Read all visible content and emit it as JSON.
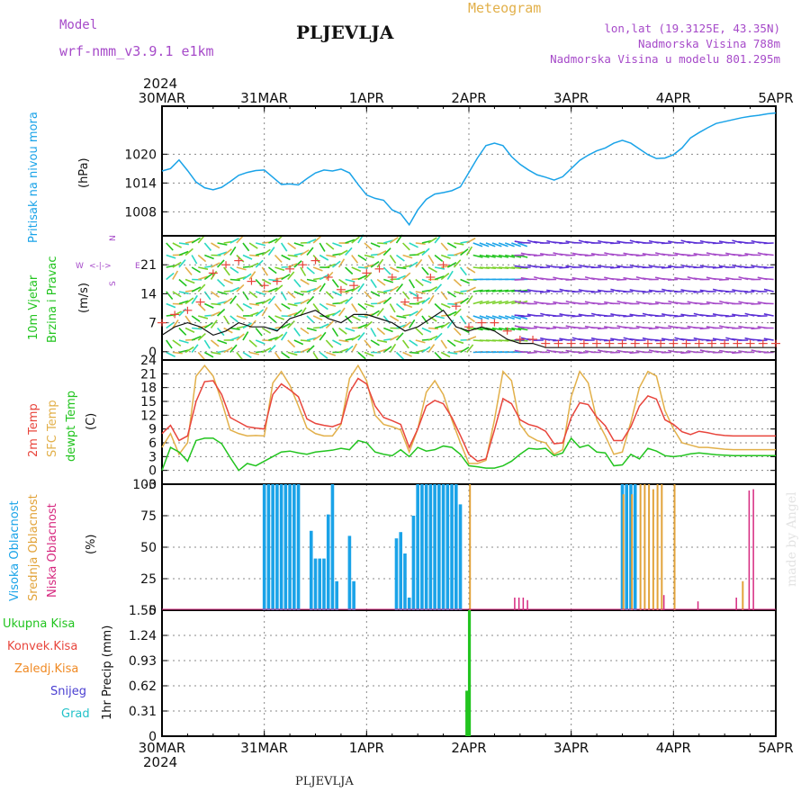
{
  "header": {
    "model_label": "Model",
    "model_name": "wrf-nmm_v3.9.1  e1km",
    "title": "PLJEVLJA",
    "meteogram": "Meteogram",
    "lonlat": "lon,lat (19.3125E, 43.35N)",
    "altitude": "Nadmorska Visina 788m",
    "model_altitude": "Nadmorska Visina u modelu 801.295m",
    "year_top": "2024",
    "year_bottom": "2024",
    "bottom_name": "PLJEVLJA",
    "credit": "made by Angel"
  },
  "time_axis": {
    "labels": [
      "30MAR",
      "31MAR",
      "1APR",
      "2APR",
      "3APR",
      "4APR",
      "5APR"
    ]
  },
  "panel_labels": {
    "pressure": [
      "Pritisak na nivou mora",
      "(hPa)"
    ],
    "wind": [
      "10m Vjetar",
      "Brzina i Pravac",
      "(m/s)"
    ],
    "compass": [
      "W",
      "S",
      "E",
      "N"
    ],
    "temp": [
      "2m Temp",
      "SFC Temp",
      "dewpt Temp",
      "(C)"
    ],
    "cloud": [
      "Visoka Oblacnost",
      "Srednja Oblacnost",
      "Niska Oblacnost",
      "(%)"
    ],
    "precip_axis": [
      "1hr Precip (mm)"
    ],
    "precip_legend": [
      "Ukupna Kisa",
      "Konvek.Kisa",
      "Zaledj.Kisa",
      "Snijeg",
      "Grad"
    ]
  },
  "colors": {
    "pressure": "#1aa3e8",
    "temp2m": "#e8453c",
    "sfc": "#e2b04a",
    "dewpt": "#22c41f",
    "high_cloud": "#1aa3e8",
    "mid_cloud": "#e2a33a",
    "low_cloud": "#d6287f",
    "total_rain": "#22c41f",
    "conv_rain": "#e8453c",
    "frz_rain": "#f08a24",
    "snow": "#4a3fd1",
    "hail": "#23c2c9",
    "pressure_label": "#1aa3e8",
    "wind_label": "#22c41f",
    "compass": "#a64ac9"
  },
  "chart_data": [
    {
      "type": "line",
      "name": "pressure",
      "ylabel": "(hPa)",
      "yticks": [
        1008,
        1014,
        1020
      ],
      "ylim": [
        1003,
        1030
      ],
      "x": [
        0,
        2,
        4,
        6,
        8,
        10,
        12,
        14,
        16,
        18,
        20,
        22,
        24,
        26,
        28,
        30,
        32,
        34,
        36,
        38,
        40,
        42,
        44,
        46,
        48,
        50,
        52,
        54,
        56,
        58,
        60,
        62,
        64,
        66,
        68,
        70,
        72,
        74,
        76,
        78,
        80,
        82,
        84,
        86,
        88,
        90,
        92,
        94,
        96,
        98,
        100,
        102,
        104,
        106,
        108,
        110,
        112,
        114,
        116,
        118,
        120,
        122,
        124,
        126,
        128,
        130,
        132,
        134,
        136,
        138,
        140,
        142,
        144
      ],
      "series": [
        {
          "values": [
            1016.5,
            1017,
            1018.8,
            1016.6,
            1014.2,
            1013,
            1012.6,
            1013.1,
            1014.3,
            1015.6,
            1016.2,
            1016.6,
            1016.7,
            1015.2,
            1013.7,
            1013.8,
            1013.6,
            1014.9,
            1016.1,
            1016.7,
            1016.5,
            1016.9,
            1016.1,
            1013.7,
            1011.5,
            1010.8,
            1010.4,
            1008.4,
            1007.6,
            1005.3,
            1008.4,
            1010.6,
            1011.7,
            1012,
            1012.4,
            1013.2,
            1016.2,
            1019.2,
            1021.8,
            1022.3,
            1021.8,
            1019.5,
            1017.9,
            1016.7,
            1015.7,
            1015.2,
            1014.6,
            1015.3,
            1017,
            1018.7,
            1019.8,
            1020.7,
            1021.3,
            1022.3,
            1022.9,
            1022.3,
            1021.1,
            1019.9,
            1019.1,
            1019.2,
            1019.9,
            1021.3,
            1023.4,
            1024.5,
            1025.5,
            1026.4,
            1026.8,
            1027.2,
            1027.6,
            1027.9,
            1028.1,
            1028.4,
            1028.6
          ]
        }
      ]
    },
    {
      "type": "line",
      "name": "wind speed",
      "ylabel": "(m/s)",
      "yticks": [
        0,
        7,
        14,
        21
      ],
      "ylim": [
        -2,
        28
      ],
      "x": [
        0,
        3,
        6,
        9,
        12,
        15,
        18,
        21,
        24,
        27,
        30,
        33,
        36,
        39,
        42,
        45,
        48,
        51,
        54,
        57,
        60,
        63,
        66,
        69,
        72,
        75,
        78,
        81,
        84,
        87,
        90,
        93,
        96,
        99,
        102,
        105,
        108,
        111,
        114,
        117,
        120,
        123,
        126,
        129,
        132,
        135,
        138,
        141,
        144
      ],
      "series": [
        {
          "name": "speed",
          "values": [
            4,
            6,
            7,
            6,
            4,
            5,
            7,
            6,
            6,
            5,
            8,
            9,
            10,
            8,
            7,
            9,
            9,
            8,
            7,
            5,
            6,
            8,
            10,
            6,
            5,
            6,
            5,
            3,
            2,
            2,
            1,
            1,
            1,
            1,
            1,
            1,
            1,
            1,
            1,
            1,
            1,
            1,
            1,
            1,
            1,
            1,
            1,
            1,
            1
          ]
        },
        {
          "name": "gust",
          "values": [
            7,
            9,
            10,
            12,
            19,
            21,
            22,
            17,
            16,
            17,
            20,
            21,
            22,
            18,
            15,
            16,
            19,
            20,
            18,
            12,
            13,
            18,
            21,
            11,
            6,
            7,
            7,
            5,
            3,
            3,
            2,
            2,
            2,
            2,
            2,
            2,
            2,
            2,
            2,
            2,
            2,
            2,
            2,
            2,
            2,
            2,
            2,
            2,
            2
          ]
        }
      ]
    },
    {
      "type": "line",
      "name": "temperature",
      "ylabel": "(C)",
      "yticks": [
        -3,
        0,
        3,
        6,
        9,
        12,
        15,
        18,
        21,
        24
      ],
      "ylim": [
        -3,
        24
      ],
      "x": [
        0,
        2,
        4,
        6,
        8,
        10,
        12,
        14,
        16,
        18,
        20,
        22,
        24,
        26,
        28,
        30,
        32,
        34,
        36,
        38,
        40,
        42,
        44,
        46,
        48,
        50,
        52,
        54,
        56,
        58,
        60,
        62,
        64,
        66,
        68,
        70,
        72,
        74,
        76,
        78,
        80,
        82,
        84,
        86,
        88,
        90,
        92,
        94,
        96,
        98,
        100,
        102,
        104,
        106,
        108,
        110,
        112,
        114,
        116,
        118,
        120,
        122,
        124,
        126,
        128,
        130,
        132,
        134,
        136,
        138,
        140,
        142,
        144
      ],
      "series": [
        {
          "name": "2m Temp",
          "values": [
            8,
            9.8,
            6.5,
            7.5,
            15,
            19.3,
            19.5,
            16.5,
            11.5,
            10.5,
            9.5,
            9.2,
            9,
            16.5,
            18.8,
            17.5,
            16,
            11.2,
            10.2,
            9.8,
            9.5,
            10.2,
            17,
            20,
            18.8,
            14,
            11.5,
            10.8,
            10,
            5,
            9,
            14,
            15.2,
            14.5,
            11.5,
            7.6,
            3.5,
            2,
            2.5,
            8.8,
            15.6,
            14.5,
            11,
            10,
            9.5,
            8.5,
            5.8,
            6,
            11.5,
            14.7,
            14.3,
            11.6,
            9.7,
            6.5,
            6.5,
            9.5,
            14,
            16.2,
            15.5,
            11,
            10,
            8.4,
            7.8,
            8.5,
            8.2,
            7.8,
            7.6,
            7.5,
            7.5,
            7.5,
            7.5,
            7.5,
            7.5
          ]
        },
        {
          "name": "SFC Temp",
          "values": [
            5,
            8,
            3.5,
            6,
            20.5,
            22.8,
            20.5,
            15,
            8.8,
            8,
            7.5,
            7.6,
            7.5,
            19,
            21.5,
            18.5,
            14,
            9.2,
            8,
            7.5,
            7.5,
            10,
            20,
            22.8,
            19.5,
            12,
            10,
            9.5,
            8.8,
            4,
            9,
            17,
            19.5,
            16.5,
            11,
            6,
            1.5,
            1.5,
            2.2,
            11,
            21.5,
            19.5,
            10,
            7.5,
            6.5,
            6,
            3.5,
            4.5,
            16,
            21.5,
            19,
            11,
            7.5,
            3.5,
            4,
            10.5,
            18,
            21.5,
            20.5,
            13,
            9,
            6,
            5.5,
            5,
            5,
            4.8,
            4.6,
            4.5,
            4.5,
            4.5,
            4.5,
            4.5,
            4.5
          ]
        },
        {
          "name": "dewpt Temp",
          "values": [
            0,
            5,
            4,
            2,
            6.5,
            7,
            7,
            5.8,
            2.8,
            0,
            1.5,
            1,
            2,
            3,
            4,
            4.2,
            3.8,
            3.5,
            4,
            4.2,
            4.4,
            4.8,
            4.5,
            6.5,
            6,
            4,
            3.5,
            3.2,
            4.5,
            3,
            5,
            4.2,
            4.5,
            5.3,
            5,
            3.5,
            1,
            0.8,
            0.5,
            0.5,
            1,
            2,
            3.5,
            4.8,
            4.6,
            4.8,
            3.2,
            3.8,
            7,
            5,
            5.5,
            4,
            3.8,
            1,
            1.2,
            3.5,
            2.5,
            4.8,
            4.2,
            3.2,
            3,
            3.2,
            3.6,
            3.8,
            3.6,
            3.4,
            3.3,
            3.2,
            3.2,
            3.2,
            3.2,
            3.2,
            3.2
          ]
        }
      ]
    },
    {
      "type": "bar",
      "name": "cloud cover",
      "ylabel": "(%)",
      "yticks": [
        0,
        25,
        50,
        75,
        100
      ],
      "ylim": [
        0,
        100
      ],
      "series": [
        {
          "name": "Visoka Oblacnost",
          "x": [
            24,
            25,
            26,
            27,
            28,
            29,
            30,
            31,
            32,
            35,
            36,
            37,
            38,
            39,
            40,
            41,
            44,
            45,
            55,
            56,
            57,
            58,
            59,
            60,
            61,
            62,
            63,
            64,
            65,
            66,
            67,
            68,
            69,
            70,
            108,
            109,
            110,
            111
          ],
          "values": [
            100,
            100,
            100,
            100,
            100,
            100,
            100,
            100,
            100,
            63,
            41,
            41,
            41,
            76,
            100,
            23,
            59,
            23,
            57,
            62,
            45,
            10,
            75,
            100,
            100,
            100,
            100,
            100,
            100,
            100,
            100,
            100,
            100,
            84,
            100,
            100,
            100,
            100
          ]
        },
        {
          "name": "Srednja Oblacnost",
          "x": [
            72,
            108,
            110,
            112,
            113,
            114,
            115,
            116,
            117,
            120,
            136
          ],
          "values": [
            100,
            92,
            92,
            100,
            100,
            100,
            96,
            100,
            100,
            100,
            23
          ]
        },
        {
          "name": "Niska Oblacnost",
          "x": [
            83,
            84,
            85,
            86,
            118,
            126,
            135,
            138,
            139
          ],
          "values": [
            10,
            10,
            10,
            8,
            12,
            7,
            10,
            95,
            96
          ]
        }
      ]
    },
    {
      "type": "bar",
      "name": "precipitation",
      "ylabel": "1hr Precip (mm)",
      "yticks": [
        0,
        0.31,
        0.62,
        0.93,
        1.24,
        1.55
      ],
      "ylim": [
        0,
        1.55
      ],
      "series": [
        {
          "name": "Ukupna Kisa",
          "x": [
            71.6,
            72.2
          ],
          "values": [
            0.56,
            1.55
          ]
        }
      ]
    }
  ]
}
